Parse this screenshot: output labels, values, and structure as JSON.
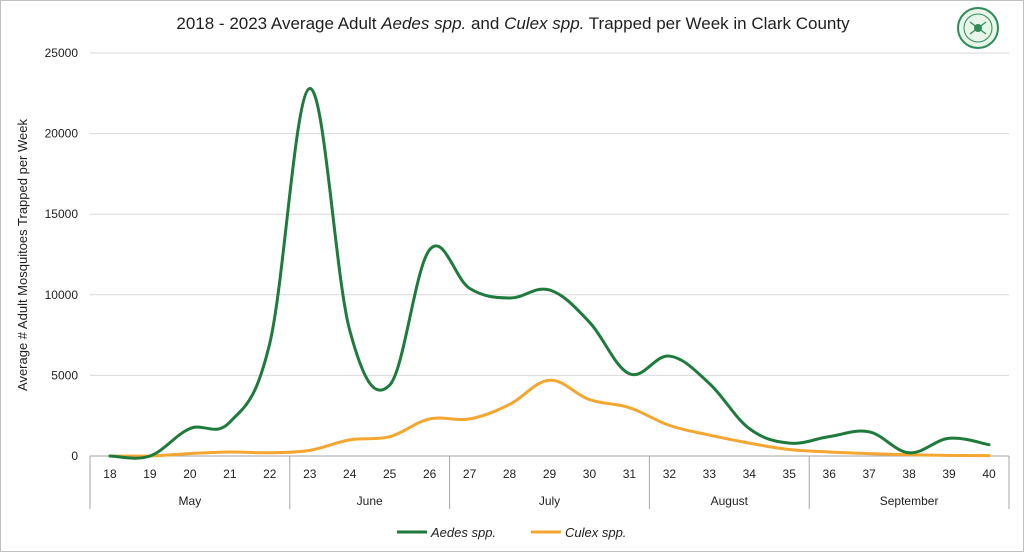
{
  "chart_data": {
    "type": "line",
    "title": {
      "prefix": "2018 - 2023 Average Adult ",
      "genus1": "Aedes spp.",
      "middle": " and ",
      "genus2": "Culex spp.",
      "suffix": " Trapped per Week in Clark County"
    },
    "ylabel": "Average # Adult Mosquitoes Trapped per Week",
    "ylim": [
      0,
      25000
    ],
    "yticks": [
      "0",
      "5000",
      "10000",
      "15000",
      "20000",
      "25000"
    ],
    "ytick_values": [
      0,
      5000,
      10000,
      15000,
      20000,
      25000
    ],
    "x": [
      "18",
      "19",
      "20",
      "21",
      "22",
      "23",
      "24",
      "25",
      "26",
      "27",
      "28",
      "29",
      "30",
      "31",
      "32",
      "33",
      "34",
      "35",
      "36",
      "37",
      "38",
      "39",
      "40"
    ],
    "months": [
      {
        "name": "May",
        "start": 0,
        "end": 4
      },
      {
        "name": "June",
        "start": 5,
        "end": 8
      },
      {
        "name": "July",
        "start": 9,
        "end": 13
      },
      {
        "name": "August",
        "start": 14,
        "end": 17
      },
      {
        "name": "September",
        "start": 18,
        "end": 22
      }
    ],
    "series": [
      {
        "name": "Aedes spp.",
        "color": "#1e7b3c",
        "values": [
          0,
          0,
          1700,
          2100,
          7000,
          22800,
          7800,
          4400,
          12800,
          10400,
          9800,
          10300,
          8300,
          5100,
          6200,
          4500,
          1700,
          800,
          1200,
          1500,
          200,
          1100,
          700
        ]
      },
      {
        "name": "Culex spp.",
        "color": "#f4a630",
        "values": [
          0,
          0,
          150,
          250,
          200,
          350,
          1000,
          1200,
          2300,
          2300,
          3200,
          4700,
          3500,
          3000,
          1900,
          1300,
          800,
          400,
          250,
          150,
          80,
          40,
          20
        ]
      }
    ],
    "grid": "horizontal",
    "legend": "bottom-center"
  },
  "logo": {
    "name": "Southern Nevada Health District seal",
    "color": "#2e8b57"
  }
}
